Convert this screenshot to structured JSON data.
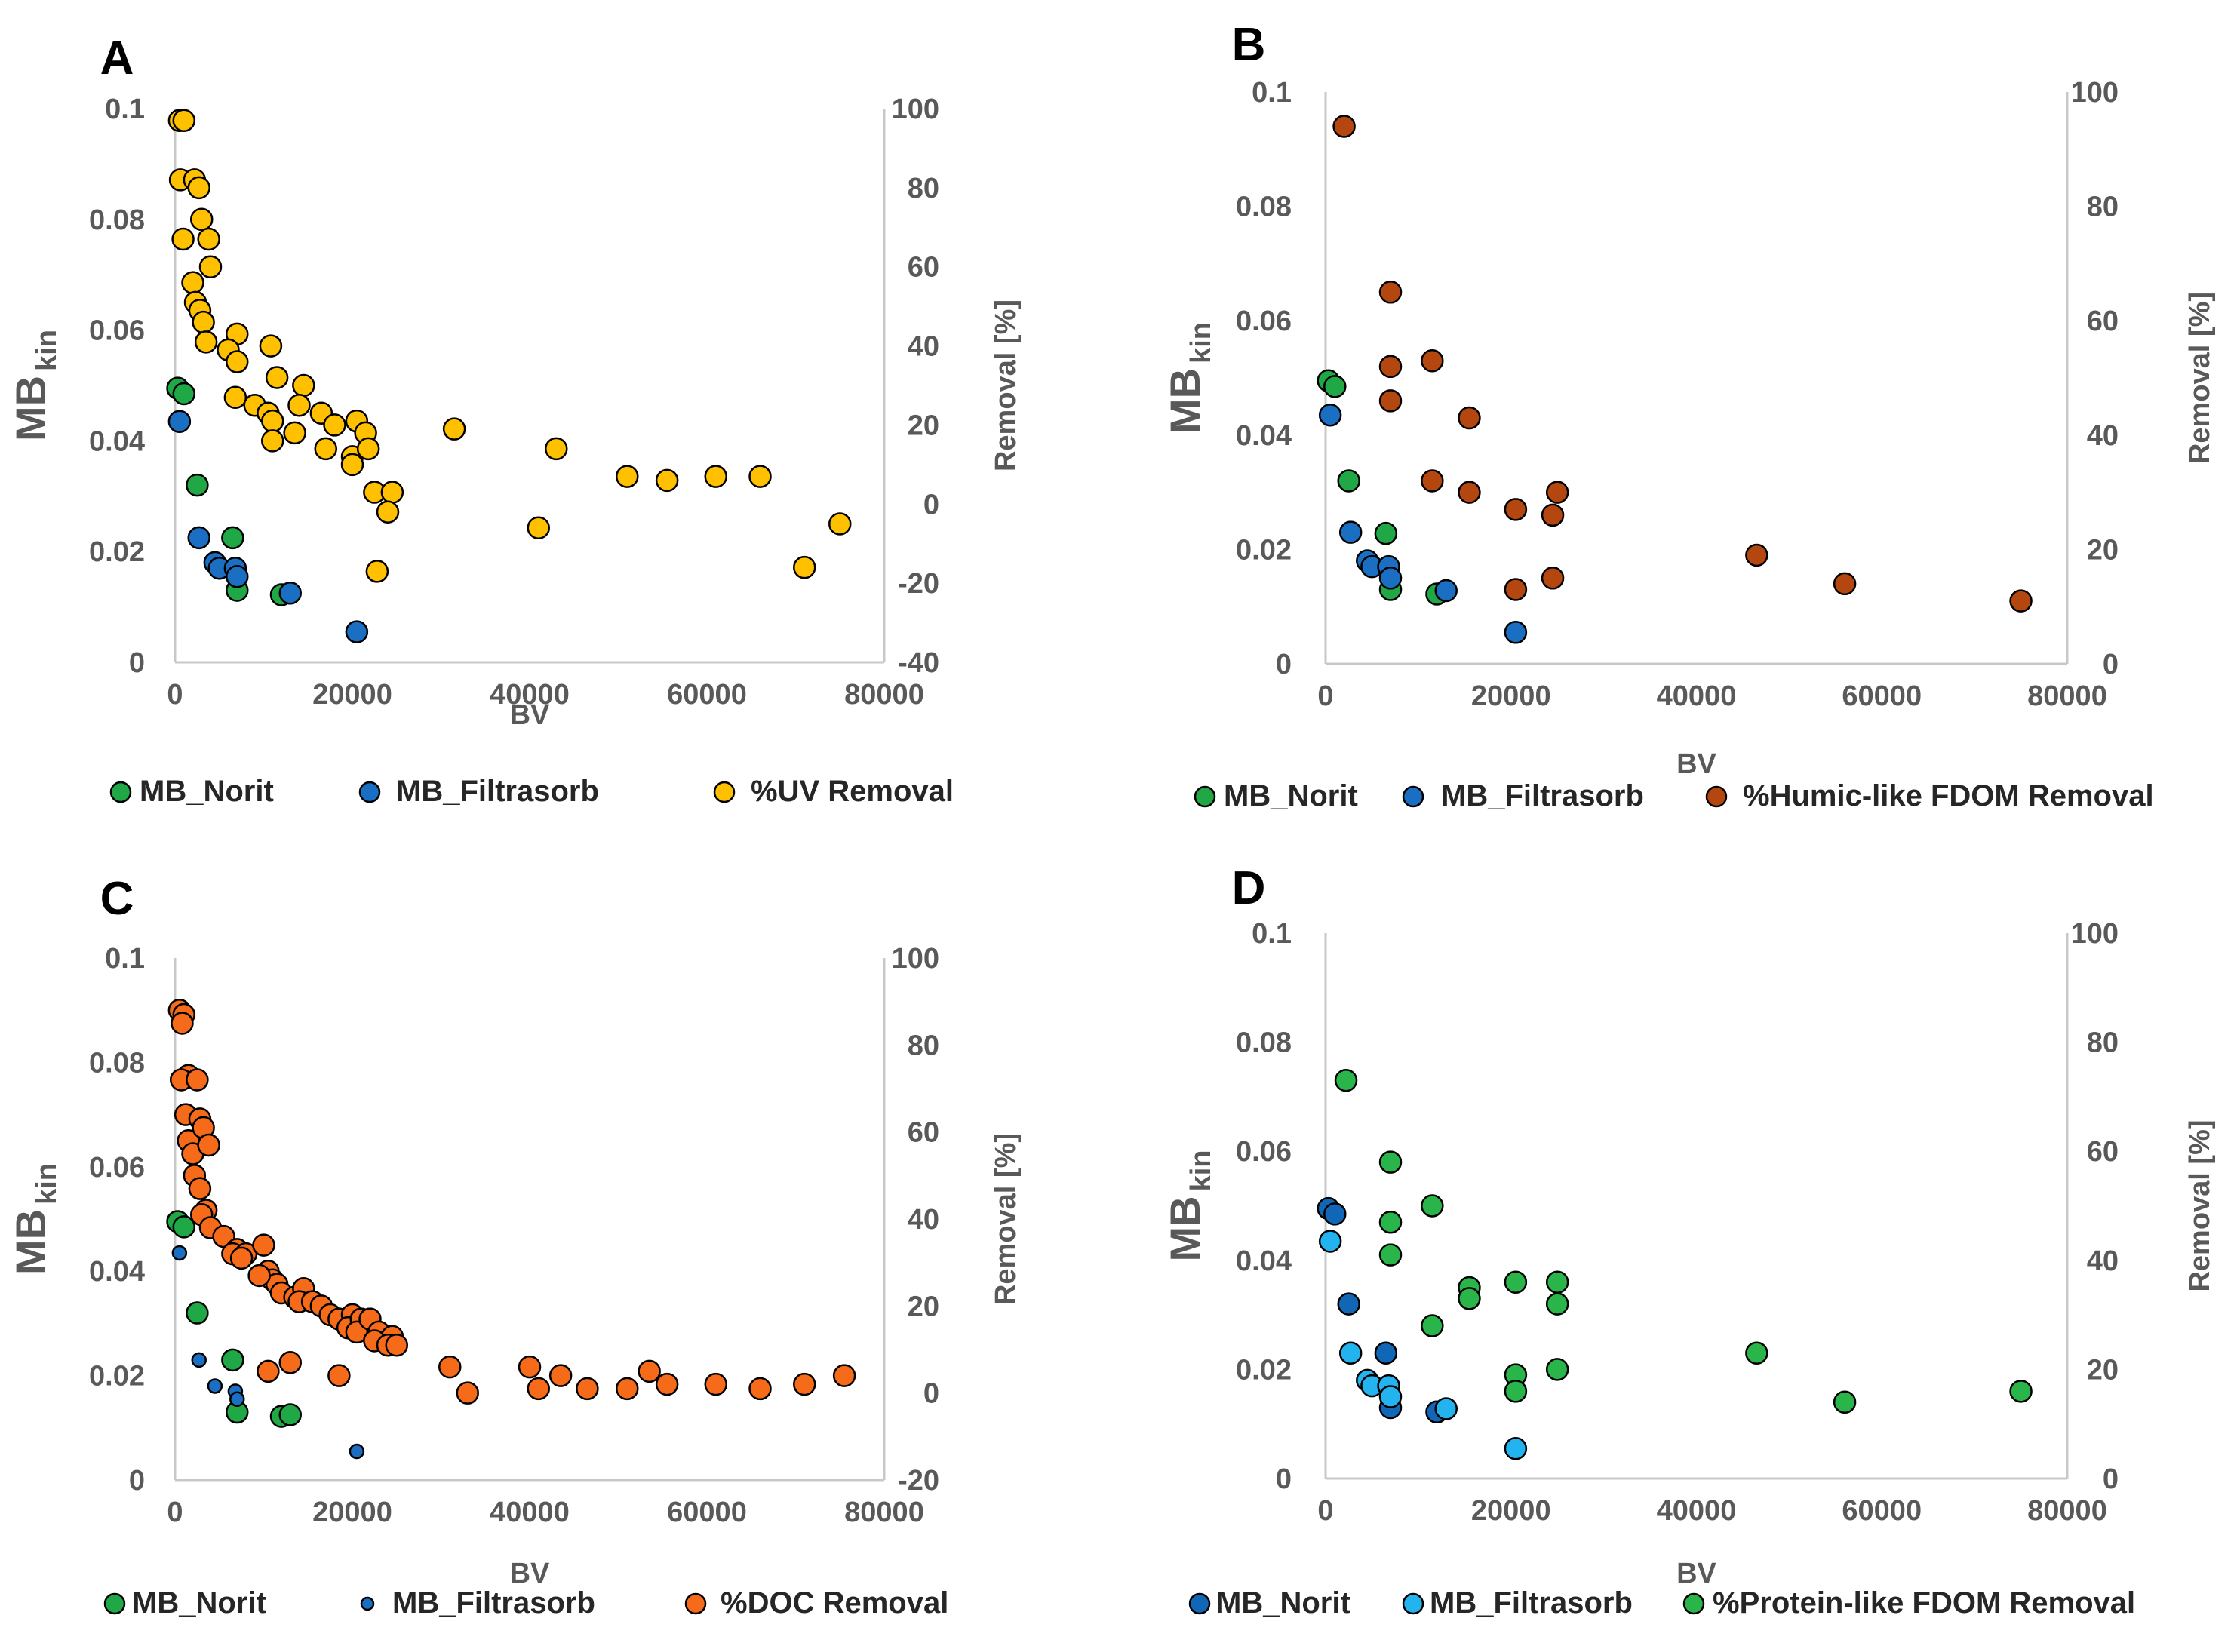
{
  "colors": {
    "norit": "#1fa845",
    "filtrasorb": "#1a6fc2",
    "uv": "#ffc000",
    "humic": "#b3470f",
    "doc": "#f56b1a",
    "protein": "#2ab54a",
    "norit_dark": "#1167b5",
    "filtrasorb_light": "#23b3ee",
    "axis": "#c8c8c8",
    "text": "#595959"
  },
  "chart_data": [
    {
      "panel": "A",
      "type": "scatter",
      "xlabel": "BV",
      "ylabel_main": "MB",
      "ylabel_sub": "kin",
      "y2label": "Removal [%]",
      "xlim": [
        0,
        80000
      ],
      "ylim": [
        0,
        0.1
      ],
      "y2lim": [
        -40,
        100
      ],
      "xticks": [
        "0",
        "20000",
        "40000",
        "60000",
        "80000"
      ],
      "yticks": [
        "0",
        "0.02",
        "0.04",
        "0.06",
        "0.08",
        "0.1"
      ],
      "y2ticks": [
        "-40",
        "-20",
        "0",
        "20",
        "40",
        "60",
        "80",
        "100"
      ],
      "series": [
        {
          "name": "MB_Norit",
          "color_key": "norit",
          "axis": "left",
          "size": "normal",
          "x": [
            300,
            1000,
            2500,
            6500,
            7000,
            12000
          ],
          "y": [
            0.0495,
            0.0485,
            0.032,
            0.0225,
            0.013,
            0.0122
          ]
        },
        {
          "name": "MB_Filtrasorb",
          "color_key": "filtrasorb",
          "axis": "left",
          "size": "normal",
          "x": [
            500,
            2700,
            4500,
            5000,
            6800,
            7000,
            13000,
            20500
          ],
          "y": [
            0.0435,
            0.0225,
            0.018,
            0.017,
            0.017,
            0.0155,
            0.0125,
            0.0055
          ]
        },
        {
          "name": "%UV Removal",
          "color_key": "uv",
          "axis": "right",
          "size": "normal",
          "x": [
            500,
            1000,
            600,
            900,
            2200,
            2700,
            3000,
            3800,
            4000,
            2000,
            2300,
            2800,
            3200,
            3500,
            7000,
            6000,
            7000,
            6800,
            9000,
            10500,
            11000,
            10800,
            11500,
            11000,
            14500,
            14000,
            13500,
            16500,
            18000,
            17000,
            20000,
            20500,
            21500,
            21800,
            20000,
            22500,
            24500,
            24000,
            22800,
            31500,
            41000,
            43000,
            51000,
            55500,
            61000,
            66000,
            71000,
            75000
          ],
          "y": [
            97,
            97,
            82,
            67,
            82,
            80,
            72,
            67,
            60,
            56,
            51,
            49,
            46,
            41,
            43,
            39,
            36,
            27,
            25,
            23,
            21,
            40,
            32,
            16,
            30,
            25,
            18,
            23,
            20,
            14,
            12,
            21,
            18,
            14,
            10,
            3,
            3,
            -2,
            -17,
            19,
            -6,
            14,
            7,
            6,
            7,
            7,
            -16,
            -5
          ]
        }
      ],
      "legend": [
        "MB_Norit",
        "MB_Filtrasorb",
        "%UV Removal"
      ]
    },
    {
      "panel": "B",
      "type": "scatter",
      "xlabel": "BV",
      "ylabel_main": "MB",
      "ylabel_sub": "kin",
      "y2label": "Removal [%]",
      "xlim": [
        0,
        80000
      ],
      "ylim": [
        0,
        0.1
      ],
      "y2lim": [
        0,
        100
      ],
      "xticks": [
        "0",
        "20000",
        "40000",
        "60000",
        "80000"
      ],
      "yticks": [
        "0",
        "0.02",
        "0.04",
        "0.06",
        "0.08",
        "0.1"
      ],
      "y2ticks": [
        "0",
        "20",
        "40",
        "60",
        "80",
        "100"
      ],
      "series": [
        {
          "name": "MB_Norit",
          "color_key": "norit",
          "axis": "left",
          "size": "normal",
          "x": [
            300,
            1000,
            2500,
            6500,
            7000,
            12000
          ],
          "y": [
            0.0495,
            0.0485,
            0.032,
            0.0228,
            0.013,
            0.0122
          ]
        },
        {
          "name": "MB_Filtrasorb",
          "color_key": "filtrasorb",
          "axis": "left",
          "size": "normal",
          "x": [
            500,
            2700,
            4500,
            5000,
            6800,
            7000,
            13000,
            20500
          ],
          "y": [
            0.0435,
            0.023,
            0.018,
            0.017,
            0.017,
            0.015,
            0.0128,
            0.0055
          ]
        },
        {
          "name": "%Humic-like FDOM Removal",
          "color_key": "humic",
          "axis": "right",
          "size": "normal",
          "x": [
            2000,
            7000,
            7000,
            7000,
            11500,
            11500,
            15500,
            15500,
            20500,
            20500,
            25000,
            24500,
            24500,
            46500,
            56000,
            75000
          ],
          "y": [
            94,
            65,
            52,
            46,
            53,
            32,
            43,
            30,
            27,
            13,
            30,
            26,
            15,
            19,
            14,
            11
          ]
        }
      ],
      "legend": [
        "MB_Norit",
        "MB_Filtrasorb",
        "%Humic-like FDOM Removal"
      ]
    },
    {
      "panel": "C",
      "type": "scatter",
      "xlabel": "BV",
      "ylabel_main": "MB",
      "ylabel_sub": "kin",
      "y2label": "Removal [%]",
      "xlim": [
        0,
        80000
      ],
      "ylim": [
        0,
        0.1
      ],
      "y2lim": [
        -20,
        100
      ],
      "xticks": [
        "0",
        "20000",
        "40000",
        "60000",
        "80000"
      ],
      "yticks": [
        "0",
        "0.02",
        "0.04",
        "0.06",
        "0.08",
        "0.1"
      ],
      "y2ticks": [
        "-20",
        "0",
        "20",
        "40",
        "60",
        "80",
        "100"
      ],
      "series": [
        {
          "name": "MB_Norit",
          "color_key": "norit",
          "axis": "left",
          "size": "normal",
          "x": [
            300,
            1000,
            2500,
            6500,
            7000,
            12000,
            13000
          ],
          "y": [
            0.0495,
            0.0485,
            0.032,
            0.023,
            0.013,
            0.0122,
            0.0125
          ]
        },
        {
          "name": "MB_Filtrasorb",
          "color_key": "filtrasorb",
          "axis": "left",
          "size": "small",
          "x": [
            500,
            2700,
            4500,
            6800,
            7000,
            20500
          ],
          "y": [
            0.0435,
            0.023,
            0.018,
            0.017,
            0.0155,
            0.0055
          ]
        },
        {
          "name": "%DOC Removal",
          "color_key": "doc",
          "axis": "right",
          "size": "normal",
          "x": [
            500,
            1000,
            800,
            1500,
            700,
            2500,
            1200,
            2800,
            1500,
            3200,
            2000,
            3800,
            2200,
            2800,
            3500,
            3000,
            4000,
            5500,
            7000,
            6500,
            8000,
            7500,
            10000,
            10500,
            11000,
            11500,
            9500,
            12000,
            13500,
            14500,
            14000,
            15500,
            16500,
            17500,
            18500,
            20000,
            19500,
            21000,
            20500,
            22000,
            23000,
            24500,
            22500,
            24000,
            25000,
            10500,
            13000,
            18500,
            31000,
            33000,
            40000,
            41000,
            43500,
            46500,
            51000,
            53500,
            55500,
            61000,
            66000,
            71000,
            75500
          ],
          "y": [
            88,
            87,
            85,
            73,
            72,
            72,
            64,
            63,
            58,
            61,
            55,
            57,
            50,
            47,
            42,
            41,
            38,
            36,
            33,
            32,
            32,
            31,
            34,
            28,
            26,
            25,
            27,
            23,
            22,
            24,
            21,
            21,
            20,
            18,
            17,
            18,
            15,
            17,
            14,
            17,
            14,
            13,
            12,
            11,
            11,
            5,
            7,
            4,
            6,
            0,
            6,
            1,
            4,
            1,
            1,
            5,
            2,
            2,
            1,
            2,
            4
          ]
        }
      ],
      "legend": [
        "MB_Norit",
        "MB_Filtrasorb",
        "%DOC Removal"
      ]
    },
    {
      "panel": "D",
      "type": "scatter",
      "xlabel": "BV",
      "ylabel_main": "MB",
      "ylabel_sub": "kin",
      "y2label": "Removal [%]",
      "xlim": [
        0,
        80000
      ],
      "ylim": [
        0,
        0.1
      ],
      "y2lim": [
        0,
        100
      ],
      "xticks": [
        "0",
        "20000",
        "40000",
        "60000",
        "80000"
      ],
      "yticks": [
        "0",
        "0.02",
        "0.04",
        "0.06",
        "0.08",
        "0.1"
      ],
      "y2ticks": [
        "0",
        "20",
        "40",
        "60",
        "80",
        "100"
      ],
      "series": [
        {
          "name": "MB_Norit",
          "color_key": "norit_dark",
          "axis": "left",
          "size": "normal",
          "x": [
            300,
            1000,
            2500,
            6500,
            7000,
            12000
          ],
          "y": [
            0.0495,
            0.0485,
            0.032,
            0.023,
            0.013,
            0.0122
          ]
        },
        {
          "name": "MB_Filtrasorb",
          "color_key": "filtrasorb_light",
          "axis": "left",
          "size": "normal",
          "x": [
            500,
            2700,
            4500,
            5000,
            6800,
            7000,
            13000,
            20500
          ],
          "y": [
            0.0435,
            0.023,
            0.018,
            0.017,
            0.017,
            0.015,
            0.0128,
            0.0055
          ]
        },
        {
          "name": "%Protein-like FDOM Removal",
          "color_key": "protein",
          "axis": "right",
          "size": "normal",
          "x": [
            2200,
            7000,
            7000,
            7000,
            11500,
            11500,
            15500,
            15500,
            20500,
            20500,
            20500,
            25000,
            25000,
            25000,
            46500,
            56000,
            75000
          ],
          "y": [
            73,
            58,
            47,
            41,
            50,
            28,
            35,
            33,
            36,
            19,
            16,
            36,
            32,
            20,
            23,
            14,
            16
          ]
        }
      ],
      "legend": [
        "MB_Norit",
        "MB_Filtrasorb",
        "%Protein-like FDOM Removal"
      ]
    }
  ]
}
